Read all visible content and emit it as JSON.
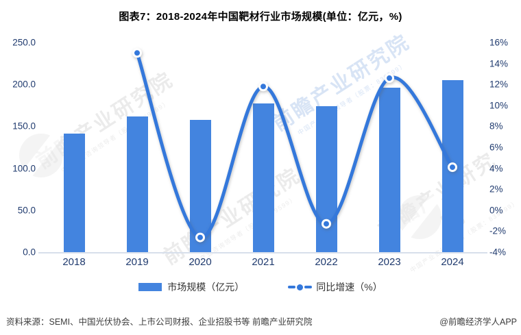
{
  "title": "图表7：2018-2024年中国靶材行业市场规模(单位：亿元，%)",
  "chart_data": {
    "type": "bar",
    "combo": "bar+line",
    "title": "图表7：2018-2024年中国靶材行业市场规模(单位：亿元，%)",
    "categories": [
      "2018",
      "2019",
      "2020",
      "2021",
      "2022",
      "2023",
      "2024"
    ],
    "series": [
      {
        "name": "市场规模（亿元）",
        "type": "bar",
        "axis": "left",
        "values": [
          141,
          162,
          158,
          177,
          174,
          196,
          205
        ]
      },
      {
        "name": "同比增速（%）",
        "type": "line",
        "axis": "right",
        "values": [
          null,
          15.0,
          -2.6,
          11.8,
          -1.3,
          12.6,
          4.1
        ]
      }
    ],
    "left_axis": {
      "min": 0,
      "max": 250,
      "ticks": [
        "250.0",
        "200.0",
        "150.0",
        "100.0",
        "50.0",
        "0.0"
      ]
    },
    "right_axis": {
      "min": -4,
      "max": 16,
      "ticks": [
        "16%",
        "14%",
        "12%",
        "10%",
        "8%",
        "6%",
        "4%",
        "2%",
        "0%",
        "-2%",
        "-4%"
      ]
    },
    "grid": false,
    "legend_position": "bottom"
  },
  "legend": {
    "bar_label": "市场规模（亿元）",
    "line_label": "同比增速（%）"
  },
  "footer": {
    "source": "资料来源：SEMI、中国光伏协会、上市公司财报、企业招股书等 前瞻产业研究院",
    "credit": "@前瞻经济学人APP"
  },
  "watermark": {
    "brand": "前瞻产业研究院",
    "tagline": "中国产业咨询领导者（股票：839599）"
  },
  "colors": {
    "bar": "#4384df",
    "line": "#3478db",
    "marker_stroke": "#ffffff",
    "axis_label": "#1f3a6e",
    "axis_line": "#d7dfeb",
    "title": "#000000",
    "legend_text": "#333333",
    "footer_text": "#3d3d3d"
  }
}
